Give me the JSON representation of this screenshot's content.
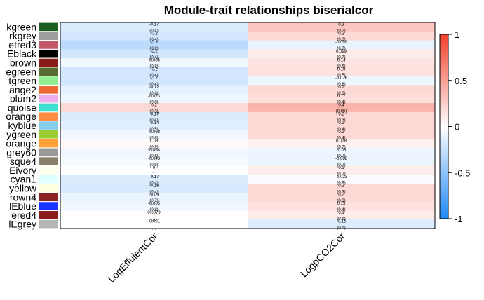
{
  "chart_data": {
    "type": "heatmap",
    "title": "Module-trait relationships biserialcor",
    "columns": [
      "LogEffulentCor",
      "LogpCO2Cor"
    ],
    "rows": [
      {
        "label": "kgreen",
        "color": "#1b5e20",
        "values": [
          -0.17,
          0.3
        ],
        "texts": [
          [
            "-0.17",
            "(0.4)"
          ],
          [
            "0.3",
            "(0.2)"
          ]
        ]
      },
      {
        "label": "rkgrey",
        "color": "#9e9e9e",
        "values": [
          -0.2,
          0.2
        ],
        "texts": [
          [
            "-0.2",
            "(0.4)"
          ],
          [
            "0.2",
            "(0.3)"
          ]
        ]
      },
      {
        "label": "etred3",
        "color": "#c2596a",
        "values": [
          -0.3,
          -0.099
        ],
        "texts": [
          [
            "-0.3",
            "(0.2)"
          ],
          [
            "-0.099",
            "(0.7)"
          ]
        ]
      },
      {
        "label": "Eblack",
        "color": "#000000",
        "values": [
          -0.2,
          0.099
        ],
        "texts": [
          [
            "-0.2",
            "(0.4)"
          ],
          [
            "0.099",
            "(0.7)"
          ]
        ]
      },
      {
        "label": "brown",
        "color": "#8b1a1a",
        "values": [
          -0.065,
          0.14
        ],
        "texts": [
          [
            "-0.065",
            "(0.8)"
          ],
          [
            "0.14",
            "(0.5)"
          ]
        ]
      },
      {
        "label": "egreen",
        "color": "#556b2f",
        "values": [
          -0.2,
          0.15
        ],
        "texts": [
          [
            "-0.2",
            "(0.4)"
          ],
          [
            "0.15",
            "(0.5)"
          ]
        ]
      },
      {
        "label": "tgreen",
        "color": "#90ee90",
        "values": [
          -0.2,
          -0.076
        ],
        "texts": [
          [
            "-0.2",
            "(0.4)"
          ],
          [
            "-0.076",
            "(0.8)"
          ]
        ]
      },
      {
        "label": "ange2",
        "color": "#ee6a33",
        "values": [
          -0.12,
          0.2
        ],
        "texts": [
          [
            "-0.12",
            "(0.6)"
          ],
          [
            "0.2",
            "(0.3)"
          ]
        ]
      },
      {
        "label": "plum2",
        "color": "#eeaeee",
        "values": [
          -0.073,
          0.17
        ],
        "texts": [
          [
            "-0.073",
            "(0.8)"
          ],
          [
            "0.17",
            "(0.4)"
          ]
        ]
      },
      {
        "label": "quoise",
        "color": "#40e0d0",
        "values": [
          0.2,
          0.4
        ],
        "texts": [
          [
            "0.2",
            "(0.3)"
          ],
          [
            "0.4",
            "(0.05)"
          ]
        ]
      },
      {
        "label": "orange",
        "color": "#ff8c42",
        "values": [
          -0.17,
          0.2
        ],
        "texts": [
          [
            "-0.17",
            "(0.4)"
          ],
          [
            "0.2",
            "(0.3)"
          ]
        ]
      },
      {
        "label": "kyblue",
        "color": "#87ceeb",
        "values": [
          -0.14,
          0.2
        ],
        "texts": [
          [
            "-0.14",
            "(0.5)"
          ],
          [
            "0.2",
            "(0.4)"
          ]
        ]
      },
      {
        "label": "ygreen",
        "color": "#9acd32",
        "values": [
          -0.068,
          0.2
        ],
        "texts": [
          [
            "-0.068",
            "(0.8)"
          ],
          [
            "0.2",
            "(0.4)"
          ]
        ]
      },
      {
        "label": "orange",
        "color": "#ffa038",
        "values": [
          0.03,
          0.078
        ],
        "texts": [
          [
            "0.03",
            "(0.9)"
          ],
          [
            "0.078",
            "(0.7)"
          ]
        ]
      },
      {
        "label": "grey60",
        "color": "#999999",
        "values": [
          -0.064,
          -0.08
        ],
        "texts": [
          [
            "-0.064",
            "(0.8)"
          ],
          [
            "-0.08",
            "(0.7)"
          ]
        ]
      },
      {
        "label": "sque4",
        "color": "#8b7d6b",
        "values": [
          -0.043,
          -0.088
        ],
        "texts": [
          [
            "-0.043",
            "(0.9)"
          ],
          [
            "-0.088",
            "(0.7)"
          ]
        ]
      },
      {
        "label": "Eivory",
        "color": "#fffff0",
        "values": [
          0.0,
          0.1
        ],
        "texts": [
          [
            "0",
            "(1)"
          ],
          [
            "0.1",
            "(0.7)"
          ]
        ]
      },
      {
        "label": "cyan1",
        "color": "#e0ffff",
        "values": [
          -0.17,
          -0.023
        ],
        "texts": [
          [
            "-0.17",
            "(0.4)"
          ],
          [
            "-0.023",
            "(0.9)"
          ]
        ]
      },
      {
        "label": "yellow",
        "color": "#ffffe0",
        "values": [
          -0.18,
          0.2
        ],
        "texts": [
          [
            "-0.18",
            "(0.4)"
          ],
          [
            "0.2",
            "(0.3)"
          ]
        ]
      },
      {
        "label": "rown4",
        "color": "#8b2323",
        "values": [
          -0.09,
          0.2
        ],
        "texts": [
          [
            "-0.09",
            "(0.7)"
          ],
          [
            "0.2",
            "(0.3)"
          ]
        ]
      },
      {
        "label": "lEblue",
        "color": "#1a35ff",
        "values": [
          -0.065,
          0.15
        ],
        "texts": [
          [
            "-0.065",
            "(0.8)"
          ],
          [
            "0.15",
            "(0.4)"
          ]
        ]
      },
      {
        "label": "ered4",
        "color": "#8b1c1c",
        "values": [
          0.0079,
          0.1
        ],
        "texts": [
          [
            "0.0079",
            "(1)"
          ],
          [
            "0.1",
            "(0.6)"
          ]
        ]
      },
      {
        "label": "lEgrey",
        "color": "#b5b5b5",
        "values": [
          -0.001,
          -0.15
        ],
        "texts": [
          [
            "-0.001",
            "(1)"
          ],
          [
            "-0.15",
            "(0.5)"
          ]
        ]
      }
    ],
    "colorbar": {
      "range": [
        -1,
        1
      ],
      "ticks": [
        "1",
        "0.5",
        "0",
        "-0.5",
        "-1"
      ],
      "colors": {
        "low": "#1e88f5",
        "mid": "#ffffff",
        "high": "#f0402a"
      }
    }
  }
}
